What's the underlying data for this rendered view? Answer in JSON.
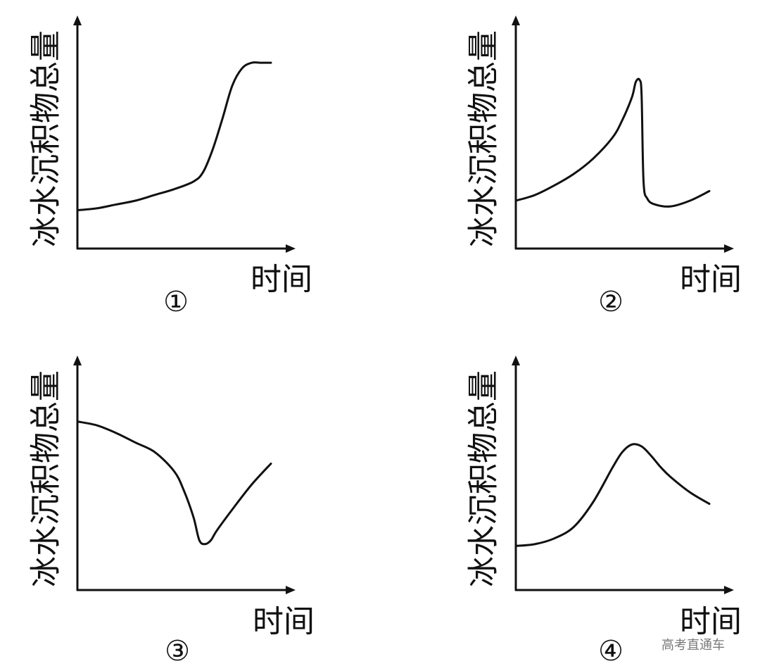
{
  "watermark": "高考直通车",
  "chart_data": [
    {
      "type": "line",
      "panel_label": "①",
      "xlabel": "时间",
      "ylabel": "冰水沉积物总量",
      "x": [
        0,
        0.1,
        0.2,
        0.3,
        0.4,
        0.5,
        0.6,
        0.65,
        0.7,
        0.75,
        0.8,
        0.85,
        0.9,
        0.95,
        1.0
      ],
      "y": [
        0.2,
        0.21,
        0.23,
        0.25,
        0.28,
        0.31,
        0.35,
        0.4,
        0.52,
        0.68,
        0.85,
        0.94,
        0.97,
        0.97,
        0.97
      ],
      "xlim": [
        0,
        1.1
      ],
      "ylim": [
        0,
        1.1
      ]
    },
    {
      "type": "line",
      "panel_label": "②",
      "xlabel": "时间",
      "ylabel": "冰水沉积物总量",
      "x": [
        0,
        0.1,
        0.2,
        0.3,
        0.4,
        0.5,
        0.55,
        0.6,
        0.62,
        0.64,
        0.65,
        0.66,
        0.68,
        0.72,
        0.8,
        0.9,
        1.0
      ],
      "y": [
        0.25,
        0.28,
        0.33,
        0.39,
        0.47,
        0.58,
        0.67,
        0.79,
        0.87,
        0.88,
        0.8,
        0.35,
        0.26,
        0.23,
        0.22,
        0.25,
        0.3
      ],
      "xlim": [
        0,
        1.1
      ],
      "ylim": [
        0,
        1.1
      ]
    },
    {
      "type": "line",
      "panel_label": "③",
      "xlabel": "时间",
      "ylabel": "冰水沉积物总量",
      "x": [
        0,
        0.1,
        0.2,
        0.3,
        0.4,
        0.5,
        0.55,
        0.6,
        0.63,
        0.66,
        0.69,
        0.72,
        0.8,
        0.9,
        1.0
      ],
      "y": [
        0.88,
        0.86,
        0.82,
        0.77,
        0.72,
        0.62,
        0.52,
        0.38,
        0.26,
        0.24,
        0.26,
        0.31,
        0.42,
        0.55,
        0.66
      ],
      "xlim": [
        0,
        1.1
      ],
      "ylim": [
        0,
        1.1
      ]
    },
    {
      "type": "line",
      "panel_label": "④",
      "xlabel": "时间",
      "ylabel": "冰水沉积物总量",
      "x": [
        0,
        0.1,
        0.2,
        0.3,
        0.4,
        0.5,
        0.55,
        0.6,
        0.65,
        0.7,
        0.75,
        0.8,
        0.9,
        1.0
      ],
      "y": [
        0.23,
        0.24,
        0.27,
        0.33,
        0.46,
        0.64,
        0.72,
        0.76,
        0.75,
        0.7,
        0.64,
        0.59,
        0.51,
        0.45
      ],
      "xlim": [
        0,
        1.1
      ],
      "ylim": [
        0,
        1.1
      ]
    }
  ]
}
